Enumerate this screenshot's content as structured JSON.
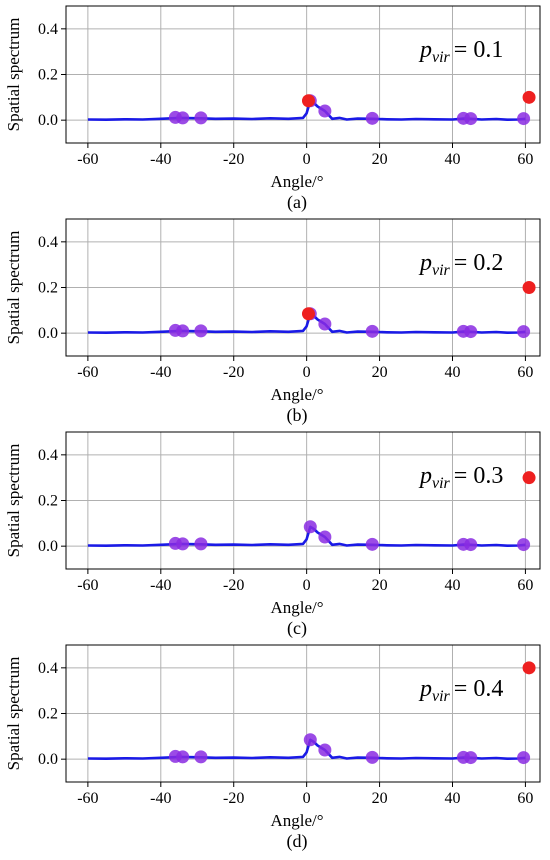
{
  "figure": {
    "xlabel": "Angle/°",
    "ylabel": "Spatial spectrum"
  },
  "colors": {
    "line": "#1a1ae6",
    "marker": "#8a2be2",
    "highlight": "#ee2020",
    "grid": "#b0b0b0"
  },
  "chart_data": [
    {
      "type": "line",
      "panel_label": "(a)",
      "annotation": {
        "symbol": "p",
        "subscript": "vir",
        "equation": "= 0.1"
      },
      "xlim": [
        -66,
        64
      ],
      "ylim": [
        -0.1,
        0.5
      ],
      "xticks": [
        -60,
        -40,
        -20,
        0,
        20,
        40,
        60
      ],
      "xtick_labels": [
        "-60",
        "-40",
        "-20",
        "0",
        "20",
        "40",
        "60"
      ],
      "yticks": [
        0.0,
        0.2,
        0.4
      ],
      "ytick_labels": [
        "0.0",
        "0.2",
        "0.4"
      ],
      "grid": true,
      "series": [
        {
          "kind": "line",
          "x": [
            -60,
            -55,
            -50,
            -45,
            -40,
            -37,
            -35,
            -33,
            -29,
            -25,
            -20,
            -15,
            -10,
            -5,
            -1,
            0,
            1,
            2,
            3,
            5,
            7,
            9,
            11,
            14,
            18,
            22,
            26,
            30,
            35,
            40,
            43,
            45,
            48,
            52,
            55,
            58,
            60
          ],
          "y": [
            0.003,
            0.002,
            0.004,
            0.003,
            0.006,
            0.008,
            0.01,
            0.009,
            0.008,
            0.006,
            0.007,
            0.005,
            0.008,
            0.006,
            0.01,
            0.03,
            0.085,
            0.075,
            0.06,
            0.04,
            0.006,
            0.01,
            0.003,
            0.007,
            0.006,
            0.004,
            0.003,
            0.005,
            0.004,
            0.003,
            0.007,
            0.006,
            0.003,
            0.005,
            0.002,
            0.003,
            0.006
          ]
        },
        {
          "kind": "markers",
          "x": [
            -36,
            -34,
            -29,
            1,
            5,
            18,
            43,
            45,
            59.5
          ],
          "y": [
            0.012,
            0.01,
            0.01,
            0.085,
            0.04,
            0.008,
            0.008,
            0.007,
            0.007
          ]
        },
        {
          "kind": "highlight",
          "x": [
            0.5,
            61
          ],
          "y": [
            0.085,
            0.1
          ]
        }
      ]
    },
    {
      "type": "line",
      "panel_label": "(b)",
      "annotation": {
        "symbol": "p",
        "subscript": "vir",
        "equation": "= 0.2"
      },
      "xlim": [
        -66,
        64
      ],
      "ylim": [
        -0.1,
        0.5
      ],
      "xticks": [
        -60,
        -40,
        -20,
        0,
        20,
        40,
        60
      ],
      "xtick_labels": [
        "-60",
        "-40",
        "-20",
        "0",
        "20",
        "40",
        "60"
      ],
      "yticks": [
        0.0,
        0.2,
        0.4
      ],
      "ytick_labels": [
        "0.0",
        "0.2",
        "0.4"
      ],
      "grid": true,
      "series": [
        {
          "kind": "line",
          "x": [
            -60,
            -55,
            -50,
            -45,
            -40,
            -37,
            -35,
            -33,
            -29,
            -25,
            -20,
            -15,
            -10,
            -5,
            -1,
            0,
            1,
            2,
            3,
            5,
            7,
            9,
            11,
            14,
            18,
            22,
            26,
            30,
            35,
            40,
            43,
            45,
            48,
            52,
            55,
            58,
            60
          ],
          "y": [
            0.003,
            0.002,
            0.004,
            0.003,
            0.006,
            0.008,
            0.01,
            0.009,
            0.008,
            0.006,
            0.007,
            0.005,
            0.008,
            0.006,
            0.01,
            0.03,
            0.085,
            0.075,
            0.06,
            0.04,
            0.006,
            0.01,
            0.003,
            0.007,
            0.006,
            0.004,
            0.003,
            0.005,
            0.004,
            0.003,
            0.007,
            0.006,
            0.003,
            0.005,
            0.002,
            0.003,
            0.006
          ]
        },
        {
          "kind": "markers",
          "x": [
            -36,
            -34,
            -29,
            1,
            5,
            18,
            43,
            45,
            59.5
          ],
          "y": [
            0.012,
            0.01,
            0.01,
            0.085,
            0.04,
            0.008,
            0.008,
            0.007,
            0.007
          ]
        },
        {
          "kind": "highlight",
          "x": [
            0.5,
            61
          ],
          "y": [
            0.085,
            0.2
          ]
        }
      ]
    },
    {
      "type": "line",
      "panel_label": "(c)",
      "annotation": {
        "symbol": "p",
        "subscript": "vir",
        "equation": "= 0.3"
      },
      "xlim": [
        -66,
        64
      ],
      "ylim": [
        -0.1,
        0.5
      ],
      "xticks": [
        -60,
        -40,
        -20,
        0,
        20,
        40,
        60
      ],
      "xtick_labels": [
        "-60",
        "-40",
        "-20",
        "0",
        "20",
        "40",
        "60"
      ],
      "yticks": [
        0.0,
        0.2,
        0.4
      ],
      "ytick_labels": [
        "0.0",
        "0.2",
        "0.4"
      ],
      "grid": true,
      "series": [
        {
          "kind": "line",
          "x": [
            -60,
            -55,
            -50,
            -45,
            -40,
            -37,
            -35,
            -33,
            -29,
            -25,
            -20,
            -15,
            -10,
            -5,
            -1,
            0,
            1,
            2,
            3,
            5,
            7,
            9,
            11,
            14,
            18,
            22,
            26,
            30,
            35,
            40,
            43,
            45,
            48,
            52,
            55,
            58,
            60
          ],
          "y": [
            0.003,
            0.002,
            0.004,
            0.003,
            0.006,
            0.008,
            0.01,
            0.009,
            0.008,
            0.006,
            0.007,
            0.005,
            0.008,
            0.006,
            0.01,
            0.03,
            0.085,
            0.075,
            0.06,
            0.04,
            0.006,
            0.01,
            0.003,
            0.007,
            0.006,
            0.004,
            0.003,
            0.005,
            0.004,
            0.003,
            0.007,
            0.006,
            0.003,
            0.005,
            0.002,
            0.003,
            0.006
          ]
        },
        {
          "kind": "markers",
          "x": [
            -36,
            -34,
            -29,
            1,
            5,
            18,
            43,
            45,
            59.5
          ],
          "y": [
            0.012,
            0.01,
            0.01,
            0.085,
            0.04,
            0.008,
            0.008,
            0.007,
            0.007
          ]
        },
        {
          "kind": "highlight",
          "x": [
            61
          ],
          "y": [
            0.3
          ]
        }
      ]
    },
    {
      "type": "line",
      "panel_label": "(d)",
      "annotation": {
        "symbol": "p",
        "subscript": "vir",
        "equation": "= 0.4"
      },
      "xlim": [
        -66,
        64
      ],
      "ylim": [
        -0.1,
        0.5
      ],
      "xticks": [
        -60,
        -40,
        -20,
        0,
        20,
        40,
        60
      ],
      "xtick_labels": [
        "-60",
        "-40",
        "-20",
        "0",
        "20",
        "40",
        "60"
      ],
      "yticks": [
        0.0,
        0.2,
        0.4
      ],
      "ytick_labels": [
        "0.0",
        "0.2",
        "0.4"
      ],
      "grid": true,
      "series": [
        {
          "kind": "line",
          "x": [
            -60,
            -55,
            -50,
            -45,
            -40,
            -37,
            -35,
            -33,
            -29,
            -25,
            -20,
            -15,
            -10,
            -5,
            -1,
            0,
            1,
            2,
            3,
            5,
            7,
            9,
            11,
            14,
            18,
            22,
            26,
            30,
            35,
            40,
            43,
            45,
            48,
            52,
            55,
            58,
            60
          ],
          "y": [
            0.003,
            0.002,
            0.004,
            0.003,
            0.006,
            0.008,
            0.01,
            0.009,
            0.008,
            0.006,
            0.007,
            0.005,
            0.008,
            0.006,
            0.01,
            0.03,
            0.085,
            0.075,
            0.06,
            0.04,
            0.006,
            0.01,
            0.003,
            0.007,
            0.006,
            0.004,
            0.003,
            0.005,
            0.004,
            0.003,
            0.007,
            0.006,
            0.003,
            0.005,
            0.002,
            0.003,
            0.006
          ]
        },
        {
          "kind": "markers",
          "x": [
            -36,
            -34,
            -29,
            1,
            5,
            18,
            43,
            45,
            59.5
          ],
          "y": [
            0.012,
            0.01,
            0.01,
            0.085,
            0.04,
            0.008,
            0.008,
            0.007,
            0.007
          ]
        },
        {
          "kind": "highlight",
          "x": [
            61
          ],
          "y": [
            0.4
          ]
        }
      ]
    }
  ]
}
